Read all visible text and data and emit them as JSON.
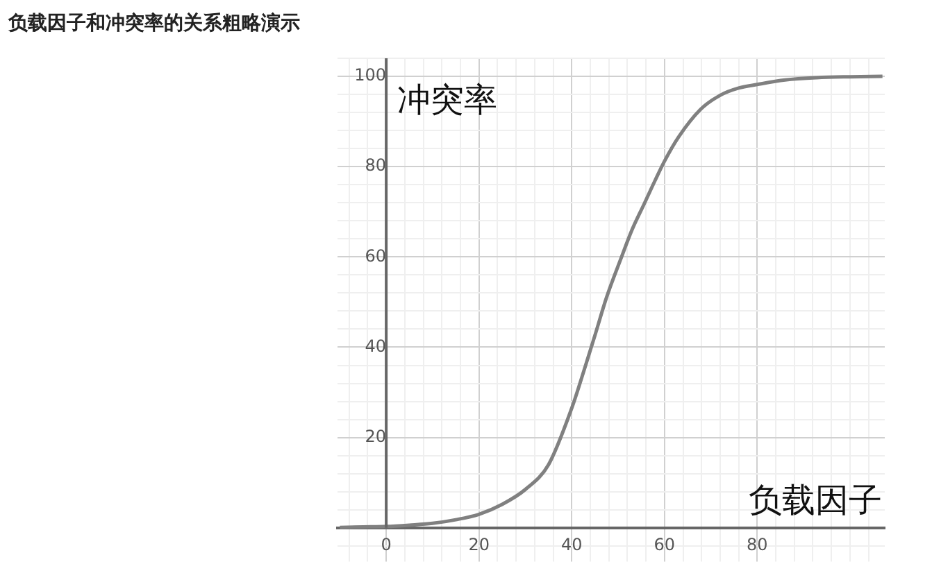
{
  "chart_data": {
    "type": "line",
    "title": "负载因子和冲突率的关系粗略演示",
    "xlabel": "负载因子",
    "ylabel": "冲突率",
    "x": [
      -10,
      -5,
      0,
      5,
      10,
      15,
      20,
      25,
      30,
      35,
      40,
      42.6,
      45,
      47.5,
      50.6,
      53,
      55.6,
      58,
      60,
      63,
      67.8,
      72,
      76,
      80,
      86,
      92.8,
      100,
      107
    ],
    "series": [
      {
        "color": "#808080",
        "values": [
          0.1,
          0.2,
          0.3,
          0.6,
          1,
          1.8,
          3,
          5.2,
          8.5,
          14,
          26.5,
          34.7,
          42.6,
          51,
          59.6,
          66,
          71.7,
          77,
          81.2,
          86.5,
          92.7,
          95.8,
          97.4,
          98.2,
          99.2,
          99.7,
          99.9,
          100
        ]
      }
    ],
    "xlim": [
      -10.5,
      107.5
    ],
    "ylim": [
      -7.5,
      104
    ],
    "xticks": [
      {
        "value": -8,
        "label": null
      },
      {
        "value": -4,
        "label": null
      },
      0,
      {
        "value": 4,
        "label": null
      },
      {
        "value": 8,
        "label": null
      },
      {
        "value": 12,
        "label": null
      },
      {
        "value": 16,
        "label": null
      },
      20,
      {
        "value": 24,
        "label": null
      },
      {
        "value": 28,
        "label": null
      },
      {
        "value": 32,
        "label": null
      },
      {
        "value": 36,
        "label": null
      },
      40,
      {
        "value": 44,
        "label": null
      },
      {
        "value": 48,
        "label": null
      },
      {
        "value": 52,
        "label": null
      },
      {
        "value": 56,
        "label": null
      },
      60,
      {
        "value": 64,
        "label": null
      },
      {
        "value": 68,
        "label": null
      },
      {
        "value": 72,
        "label": null
      },
      {
        "value": 76,
        "label": null
      },
      80,
      {
        "value": 84,
        "label": null
      },
      {
        "value": 88,
        "label": null
      },
      {
        "value": 92,
        "label": null
      },
      {
        "value": 96,
        "label": null
      },
      {
        "value": 100,
        "label": null
      },
      {
        "value": 104,
        "label": null
      }
    ],
    "yticks": [
      {
        "value": -4,
        "label": null
      },
      {
        "value": 0,
        "label": null
      },
      {
        "value": 4,
        "label": null
      },
      {
        "value": 8,
        "label": null
      },
      {
        "value": 12,
        "label": null
      },
      {
        "value": 16,
        "label": null
      },
      20,
      {
        "value": 24,
        "label": null
      },
      {
        "value": 28,
        "label": null
      },
      {
        "value": 32,
        "label": null
      },
      {
        "value": 36,
        "label": null
      },
      40,
      {
        "value": 44,
        "label": null
      },
      {
        "value": 48,
        "label": null
      },
      {
        "value": 52,
        "label": null
      },
      {
        "value": 56,
        "label": null
      },
      60,
      {
        "value": 64,
        "label": null
      },
      {
        "value": 68,
        "label": null
      },
      {
        "value": 72,
        "label": null
      },
      {
        "value": 76,
        "label": null
      },
      80,
      {
        "value": 84,
        "label": null
      },
      {
        "value": 88,
        "label": null
      },
      {
        "value": 92,
        "label": null
      },
      {
        "value": 96,
        "label": null
      },
      100,
      {
        "value": 104,
        "label": null
      }
    ],
    "grid": true,
    "legend": false,
    "marker": "none",
    "line_style": "solid"
  }
}
